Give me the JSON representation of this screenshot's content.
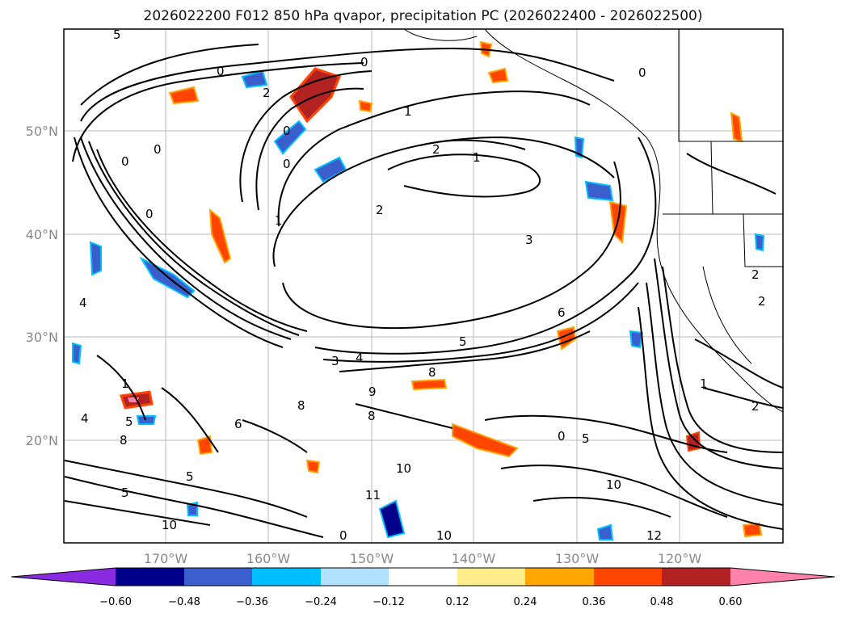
{
  "title": "2026022200 F012 850 hPa qvapor, precipitation PC (2026022400 - 2026022500)",
  "map": {
    "lat_labels": [
      "50°N",
      "40°N",
      "30°N",
      "20°N"
    ],
    "lon_labels": [
      "170°W",
      "160°W",
      "150°W",
      "140°W",
      "130°W",
      "120°W"
    ],
    "contour_labels": [
      "0",
      "1",
      "2",
      "3",
      "4",
      "5",
      "6",
      "8",
      "9",
      "10",
      "11",
      "12"
    ]
  },
  "colorbar": {
    "ticks": [
      "−0.60",
      "−0.48",
      "−0.36",
      "−0.24",
      "−0.12",
      "0.12",
      "0.24",
      "0.36",
      "0.48",
      "0.60"
    ],
    "colors": [
      "#8a2be2",
      "#00008b",
      "#3a5fcd",
      "#00bfff",
      "#b0e2ff",
      "#ffffff",
      "#ffec8b",
      "#ffa500",
      "#ff4500",
      "#b22222",
      "#ff82ab"
    ]
  }
}
